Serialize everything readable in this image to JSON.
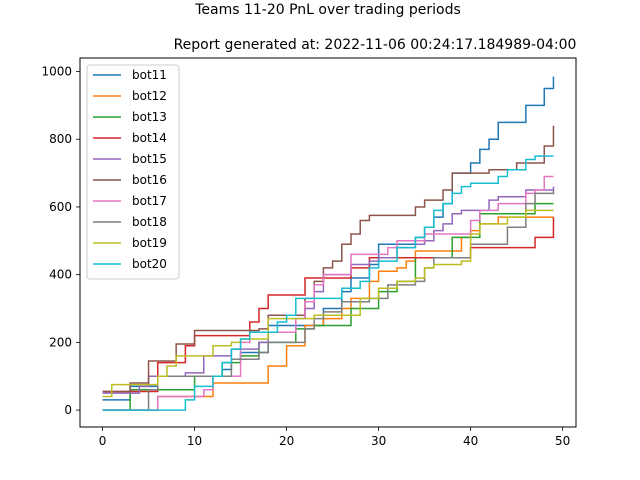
{
  "chart_data": {
    "type": "line",
    "suptitle": "Teams 11-20 PnL over trading periods",
    "title": "Report generated at: 2022-11-06 00:24:17.184989-04:00",
    "xlabel": "",
    "ylabel": "",
    "xlim": [
      -2.45,
      51.45
    ],
    "ylim": [
      -50,
      1040
    ],
    "xticks": [
      0,
      10,
      20,
      30,
      40,
      50
    ],
    "yticks": [
      0,
      200,
      400,
      600,
      800,
      1000
    ],
    "grid": false,
    "legend_position": "upper-left",
    "step": true,
    "x": [
      0,
      1,
      2,
      3,
      4,
      5,
      6,
      7,
      8,
      9,
      10,
      11,
      12,
      13,
      14,
      15,
      16,
      17,
      18,
      19,
      20,
      21,
      22,
      23,
      24,
      25,
      26,
      27,
      28,
      29,
      30,
      31,
      32,
      33,
      34,
      35,
      36,
      37,
      38,
      39,
      40,
      41,
      42,
      43,
      44,
      45,
      46,
      47,
      48,
      49
    ],
    "series": [
      {
        "name": "bot11",
        "color": "#1f77b4",
        "values": [
          30,
          30,
          30,
          70,
          70,
          70,
          100,
          100,
          100,
          100,
          100,
          100,
          100,
          120,
          150,
          170,
          170,
          170,
          250,
          250,
          250,
          250,
          250,
          250,
          300,
          300,
          350,
          390,
          390,
          430,
          490,
          490,
          490,
          490,
          510,
          540,
          570,
          610,
          700,
          700,
          730,
          770,
          800,
          850,
          850,
          850,
          900,
          900,
          950,
          985
        ]
      },
      {
        "name": "bot12",
        "color": "#ff7f0e",
        "values": [
          0,
          0,
          0,
          0,
          0,
          0,
          40,
          40,
          40,
          40,
          40,
          40,
          80,
          80,
          80,
          80,
          80,
          80,
          130,
          130,
          190,
          190,
          250,
          250,
          270,
          270,
          300,
          330,
          330,
          380,
          410,
          410,
          420,
          440,
          470,
          470,
          470,
          470,
          470,
          510,
          530,
          550,
          550,
          570,
          570,
          570,
          570,
          570,
          570,
          570
        ]
      },
      {
        "name": "bot13",
        "color": "#2ca02c",
        "values": [
          0,
          0,
          0,
          60,
          60,
          60,
          60,
          60,
          60,
          60,
          100,
          100,
          100,
          140,
          140,
          160,
          160,
          200,
          200,
          200,
          200,
          240,
          240,
          250,
          250,
          250,
          250,
          300,
          300,
          300,
          350,
          350,
          380,
          380,
          450,
          450,
          450,
          450,
          510,
          510,
          510,
          580,
          580,
          580,
          580,
          580,
          580,
          610,
          610,
          610
        ]
      },
      {
        "name": "bot14",
        "color": "#d62728",
        "values": [
          55,
          55,
          55,
          55,
          55,
          55,
          140,
          140,
          140,
          190,
          220,
          220,
          220,
          220,
          220,
          220,
          260,
          300,
          340,
          340,
          340,
          340,
          390,
          390,
          390,
          390,
          390,
          420,
          420,
          450,
          450,
          450,
          450,
          450,
          450,
          450,
          450,
          450,
          450,
          450,
          480,
          480,
          480,
          480,
          480,
          480,
          480,
          510,
          510,
          570
        ]
      },
      {
        "name": "bot15",
        "color": "#9467bd",
        "values": [
          50,
          50,
          50,
          50,
          70,
          100,
          100,
          100,
          100,
          110,
          110,
          160,
          160,
          160,
          180,
          180,
          180,
          200,
          230,
          230,
          230,
          270,
          300,
          350,
          400,
          400,
          400,
          430,
          430,
          440,
          450,
          450,
          480,
          480,
          490,
          500,
          530,
          550,
          580,
          590,
          590,
          590,
          620,
          630,
          630,
          630,
          650,
          650,
          650,
          660
        ]
      },
      {
        "name": "bot16",
        "color": "#8c564b",
        "values": [
          55,
          55,
          55,
          80,
          80,
          145,
          145,
          145,
          195,
          195,
          235,
          235,
          235,
          235,
          235,
          235,
          235,
          240,
          280,
          280,
          280,
          280,
          330,
          380,
          420,
          440,
          490,
          520,
          560,
          575,
          575,
          575,
          575,
          575,
          600,
          620,
          620,
          650,
          700,
          700,
          700,
          700,
          710,
          710,
          710,
          730,
          730,
          730,
          780,
          840
        ]
      },
      {
        "name": "bot17",
        "color": "#e377c2",
        "values": [
          0,
          0,
          0,
          0,
          0,
          0,
          40,
          40,
          40,
          40,
          40,
          60,
          100,
          100,
          100,
          200,
          230,
          230,
          230,
          230,
          230,
          270,
          320,
          370,
          400,
          400,
          400,
          460,
          460,
          460,
          460,
          480,
          500,
          500,
          500,
          520,
          520,
          520,
          520,
          520,
          560,
          590,
          590,
          610,
          610,
          610,
          640,
          650,
          690,
          690
        ]
      },
      {
        "name": "bot18",
        "color": "#7f7f7f",
        "values": [
          0,
          0,
          0,
          0,
          0,
          60,
          100,
          100,
          100,
          100,
          100,
          100,
          100,
          100,
          150,
          150,
          150,
          170,
          200,
          200,
          200,
          200,
          240,
          270,
          290,
          290,
          320,
          320,
          320,
          330,
          330,
          370,
          370,
          370,
          380,
          420,
          450,
          450,
          450,
          450,
          490,
          490,
          490,
          490,
          540,
          540,
          610,
          640,
          640,
          650
        ]
      },
      {
        "name": "bot19",
        "color": "#bcbd22",
        "values": [
          40,
          75,
          75,
          75,
          75,
          75,
          100,
          130,
          160,
          160,
          160,
          160,
          190,
          190,
          200,
          210,
          210,
          210,
          270,
          270,
          270,
          270,
          270,
          280,
          280,
          280,
          280,
          280,
          330,
          330,
          360,
          360,
          380,
          380,
          390,
          420,
          430,
          430,
          430,
          440,
          520,
          550,
          550,
          550,
          570,
          570,
          590,
          590,
          590,
          590
        ]
      },
      {
        "name": "bot20",
        "color": "#17becf",
        "values": [
          0,
          0,
          0,
          0,
          0,
          0,
          0,
          0,
          0,
          30,
          70,
          70,
          100,
          140,
          180,
          210,
          230,
          230,
          230,
          260,
          280,
          330,
          330,
          330,
          330,
          330,
          360,
          360,
          380,
          420,
          440,
          440,
          480,
          480,
          510,
          540,
          590,
          610,
          640,
          660,
          670,
          670,
          670,
          690,
          710,
          710,
          740,
          750,
          750,
          750
        ]
      }
    ]
  }
}
